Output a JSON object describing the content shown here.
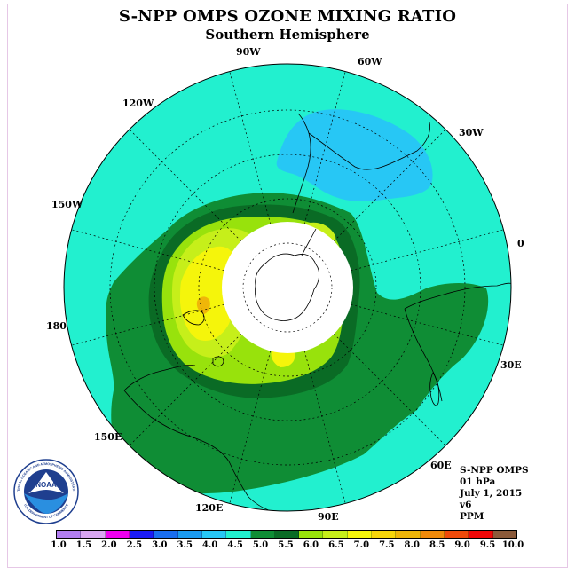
{
  "header": {
    "title": "S-NPP OMPS OZONE MIXING RATIO",
    "subtitle": "Southern Hemisphere"
  },
  "map": {
    "projection": "south polar stereographic",
    "longitude_labels": [
      {
        "key": "90W",
        "text": "90W"
      },
      {
        "key": "60W",
        "text": "60W"
      },
      {
        "key": "120W",
        "text": "120W"
      },
      {
        "key": "30W",
        "text": "30W"
      },
      {
        "key": "150W",
        "text": "150W"
      },
      {
        "key": "0",
        "text": "0"
      },
      {
        "key": "180",
        "text": "180"
      },
      {
        "key": "30E",
        "text": "30E"
      },
      {
        "key": "150E",
        "text": "150E"
      },
      {
        "key": "60E",
        "text": "60E"
      },
      {
        "key": "120E",
        "text": "120E"
      },
      {
        "key": "90E",
        "text": "90E"
      }
    ],
    "colors": {
      "background_field": "#22f0cf",
      "low_region": "#27c7f5",
      "band_5_5": "#0f8d35",
      "band_6_0": "#0a6b25",
      "band_6_5": "#98e20c",
      "band_7_0": "#c6ef1a",
      "band_7_5": "#f5f50b",
      "band_8_0": "#efb609",
      "polar_night": "#ffffff"
    }
  },
  "info": {
    "instrument": "S-NPP OMPS",
    "level": "01 hPa",
    "date": "July 1, 2015",
    "version": "v6",
    "units": "PPM"
  },
  "logo": {
    "name": "NOAA",
    "text": "NOAA",
    "ring_text": "NATIONAL OCEANIC AND ATMOSPHERIC ADMINISTRATION",
    "ring_text_bottom": "U.S. DEPARTMENT OF COMMERCE"
  },
  "colorbar": {
    "ticks": [
      "1.0",
      "1.5",
      "2.0",
      "2.5",
      "3.0",
      "3.5",
      "4.0",
      "4.5",
      "5.0",
      "5.5",
      "6.0",
      "6.5",
      "7.0",
      "7.5",
      "8.0",
      "8.5",
      "9.0",
      "9.5",
      "10.0"
    ],
    "colors": [
      "#b27ef2",
      "#d9a6f2",
      "#f000f0",
      "#1c1cf5",
      "#1a6ef0",
      "#1b9bf0",
      "#27c7f5",
      "#22f0cf",
      "#0f8d35",
      "#0a6b25",
      "#98e20c",
      "#c6ef1a",
      "#f5f50b",
      "#f7d60a",
      "#efb609",
      "#f08a0a",
      "#f04a0a",
      "#f00808",
      "#8b5a3a"
    ]
  }
}
